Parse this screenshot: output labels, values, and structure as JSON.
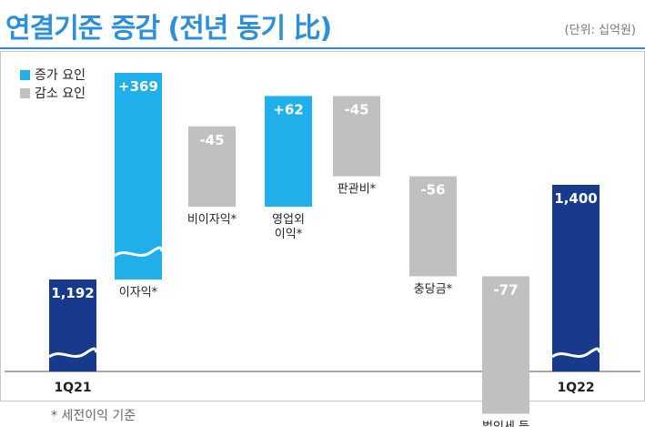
{
  "header": {
    "title": "연결기준 증감 (전년 동기 比)",
    "unit": "(단위: 십억원)"
  },
  "legend": {
    "increase": "증가 요인",
    "decrease": "감소 요인"
  },
  "footnote": "* 세전이익 기준",
  "colors": {
    "title": "#2d8fd8",
    "anchor": "#173a8c",
    "increase": "#1fb0ec",
    "decrease": "#c0c0c0"
  },
  "chart_data": {
    "type": "waterfall",
    "steps": [
      {
        "label": "1Q21",
        "value": 1192,
        "value_label": "1,192",
        "kind": "total"
      },
      {
        "label": "이자익*",
        "value": 369,
        "value_label": "+369",
        "kind": "increase"
      },
      {
        "label": "비이자익*",
        "value": -45,
        "value_label": "-45",
        "kind": "decrease"
      },
      {
        "label": "영업외\n이익*",
        "value": 62,
        "value_label": "+62",
        "kind": "increase"
      },
      {
        "label": "판관비*",
        "value": -45,
        "value_label": "-45",
        "kind": "decrease"
      },
      {
        "label": "충당금*",
        "value": -56,
        "value_label": "-56",
        "kind": "decrease"
      },
      {
        "label": "법인세 등",
        "value": -77,
        "value_label": "-77",
        "kind": "decrease"
      },
      {
        "label": "1Q22",
        "value": 1400,
        "value_label": "1,400",
        "kind": "total"
      }
    ]
  }
}
